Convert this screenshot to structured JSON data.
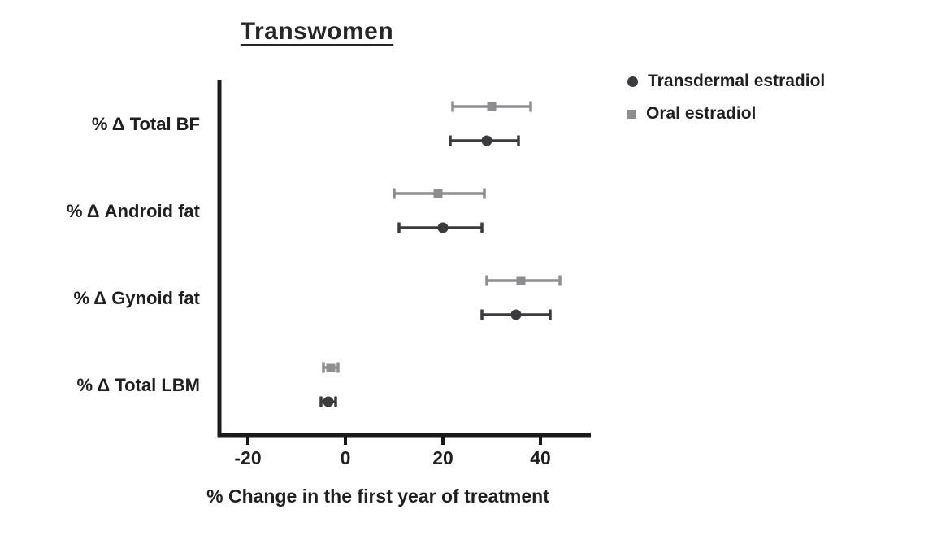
{
  "chart_data": {
    "type": "scatter",
    "title": "Transwomen",
    "xlabel": "% Change in the first year of treatment",
    "categories": [
      "% Δ Total BF",
      "% Δ Android fat",
      "% Δ Gynoid fat",
      "% Δ Total LBM"
    ],
    "x_ticks": [
      -20,
      0,
      20,
      40
    ],
    "xlim": [
      -26,
      50
    ],
    "grid": false,
    "legend_position": "top-right",
    "error_bar_caps": true,
    "axis_color": "#1a1a1a",
    "series": [
      {
        "name": "Transdermal estradiol",
        "marker": "circle",
        "color": "#3b3b3d",
        "values": [
          {
            "category": "% Δ Total BF",
            "mean": 29,
            "low": 21.5,
            "high": 35.5
          },
          {
            "category": "% Δ Android fat",
            "mean": 20,
            "low": 11,
            "high": 28
          },
          {
            "category": "% Δ Gynoid fat",
            "mean": 35,
            "low": 28,
            "high": 42
          },
          {
            "category": "% Δ Total LBM",
            "mean": -3.5,
            "low": -5,
            "high": -2
          }
        ]
      },
      {
        "name": "Oral estradiol",
        "marker": "square",
        "color": "#8e8e90",
        "values": [
          {
            "category": "% Δ Total BF",
            "mean": 30,
            "low": 22,
            "high": 38
          },
          {
            "category": "% Δ Android fat",
            "mean": 19,
            "low": 10,
            "high": 28.5
          },
          {
            "category": "% Δ Gynoid fat",
            "mean": 36,
            "low": 29,
            "high": 44
          },
          {
            "category": "% Δ Total LBM",
            "mean": -3,
            "low": -4.5,
            "high": -1.5
          }
        ]
      }
    ]
  }
}
